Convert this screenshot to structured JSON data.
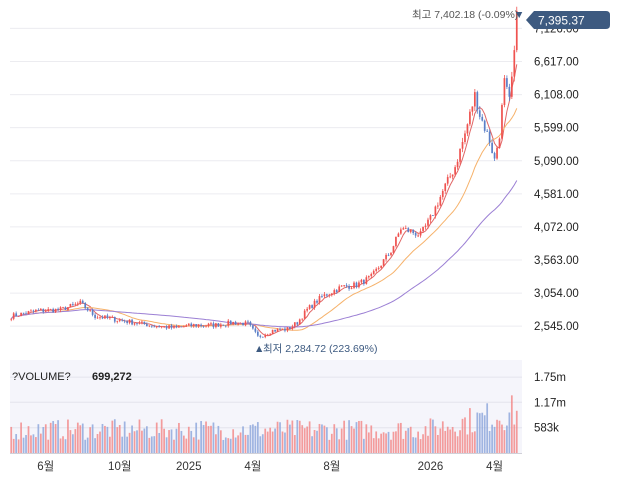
{
  "chart_data": {
    "type": "candlestick",
    "title": "",
    "price_axis": {
      "ticks": [
        "7,126.00",
        "6,617.00",
        "6,108.00",
        "5,599.00",
        "5,090.00",
        "4,581.00",
        "4,072.00",
        "3,563.00",
        "3,054.00",
        "2,545.00"
      ],
      "tick_values": [
        7126,
        6617,
        6108,
        5599,
        5090,
        4581,
        4072,
        3563,
        3054,
        2545
      ],
      "range": [
        2240,
        7440
      ],
      "position": "right",
      "grid": true
    },
    "x_axis": {
      "labels": [
        "6월",
        "10월",
        "2025",
        "4월",
        "8월",
        "2026",
        "4월"
      ],
      "label_index": [
        14,
        44,
        72,
        98,
        130,
        170,
        196
      ],
      "n_periods": 206
    },
    "current_price": {
      "label": "7,395.37",
      "value": 7395.37,
      "color": "#3d5a80"
    },
    "high_annotation": {
      "text": "최고 7,402.18 (-0.09%)",
      "marker": "▼",
      "value": 7402.18
    },
    "low_annotation": {
      "text": "최저 2,284.72 (223.69%)",
      "marker": "▲",
      "value": 2284.72
    },
    "price_keypoints": [
      [
        0,
        2700
      ],
      [
        10,
        2780
      ],
      [
        20,
        2800
      ],
      [
        28,
        2900
      ],
      [
        34,
        2700
      ],
      [
        42,
        2650
      ],
      [
        50,
        2600
      ],
      [
        58,
        2550
      ],
      [
        66,
        2520
      ],
      [
        74,
        2560
      ],
      [
        82,
        2560
      ],
      [
        90,
        2600
      ],
      [
        96,
        2580
      ],
      [
        100,
        2380
      ],
      [
        106,
        2480
      ],
      [
        112,
        2500
      ],
      [
        116,
        2600
      ],
      [
        120,
        2800
      ],
      [
        126,
        3000
      ],
      [
        134,
        3150
      ],
      [
        140,
        3180
      ],
      [
        146,
        3300
      ],
      [
        150,
        3500
      ],
      [
        154,
        3700
      ],
      [
        158,
        4050
      ],
      [
        162,
        4000
      ],
      [
        166,
        3950
      ],
      [
        170,
        4200
      ],
      [
        176,
        4700
      ],
      [
        180,
        5000
      ],
      [
        184,
        5500
      ],
      [
        188,
        6100
      ],
      [
        190,
        5800
      ],
      [
        194,
        5400
      ],
      [
        196,
        5100
      ],
      [
        198,
        5500
      ],
      [
        200,
        6300
      ],
      [
        202,
        6000
      ],
      [
        204,
        6700
      ],
      [
        205,
        7395
      ]
    ],
    "moving_averages": [
      {
        "color": "#e06666"
      },
      {
        "color": "#f6b26b"
      },
      {
        "color": "#9b7fd4"
      }
    ],
    "volume": {
      "label": "?VOLUME?",
      "value": "699,272",
      "ticks": [
        "1.75m",
        "1.17m",
        "583k"
      ],
      "tick_values": [
        1750000,
        1170000,
        583000
      ],
      "range": [
        0,
        2100000
      ]
    },
    "colors": {
      "up": "#ef5350",
      "down": "#5b7fc7",
      "grid": "#ececf0",
      "volume_bg": "#f5f5fb"
    }
  }
}
